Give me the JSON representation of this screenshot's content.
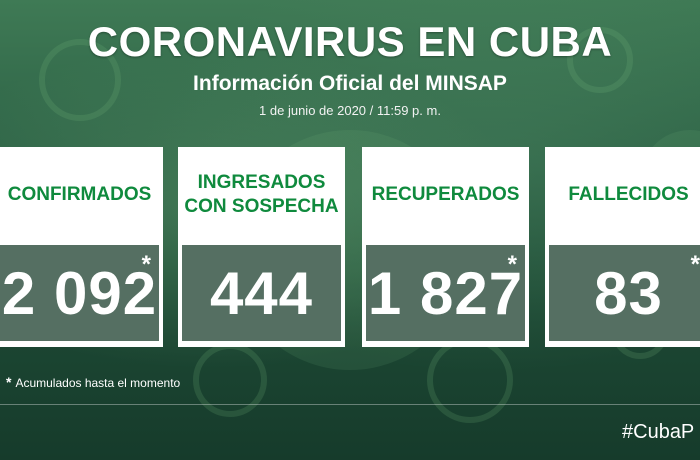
{
  "header": {
    "title": "CORONAVIRUS EN CUBA",
    "subtitle": "Información Oficial del MINSAP",
    "date": "1 de junio de 2020 / 11:59 p. m."
  },
  "cards": [
    {
      "label": "CONFIRMADOS",
      "value": "2 092",
      "asterisk": "*"
    },
    {
      "label": "INGRESADOS CON SOSPECHA",
      "value": "444",
      "asterisk": ""
    },
    {
      "label": "RECUPERADOS",
      "value": "1 827",
      "asterisk": "*"
    },
    {
      "label": "FALLECIDOS",
      "value": "83",
      "asterisk": "*"
    }
  ],
  "footnote": {
    "symbol": "*",
    "text": "Acumulados hasta el momento"
  },
  "hashtag": "#CubaP",
  "colors": {
    "label_green": "#0f8a3d",
    "background_dark": "#1d4a33"
  }
}
